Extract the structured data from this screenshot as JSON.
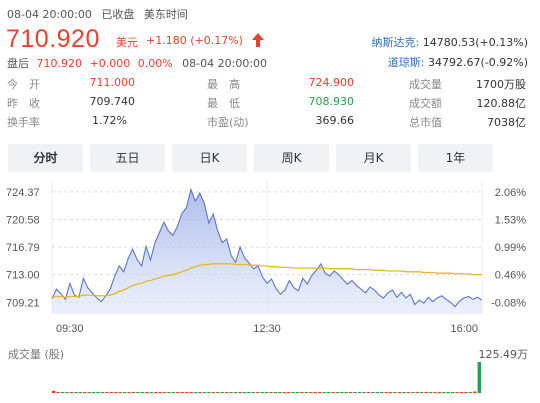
{
  "status": {
    "date_time": "08-04 20:00:00",
    "market_state": "已收盘",
    "timezone": "美东时间"
  },
  "quote": {
    "price": "710.920",
    "unit": "美元",
    "change": "+1.180 (+0.17%)",
    "colors": {
      "up": "#e8412f",
      "down": "#2a9d4e"
    }
  },
  "after_hours": {
    "label": "盘后",
    "price": "710.920",
    "change": "+0.000",
    "pct": "0.00%",
    "time": "08-04 20:00:00"
  },
  "indices": [
    {
      "name": "纳斯达克:",
      "value": "14780.53(+0.13%)"
    },
    {
      "name": "道琼斯:",
      "value": "34792.67(-0.92%)"
    }
  ],
  "stats": {
    "open": {
      "label": "今　开",
      "value": "711.000"
    },
    "high": {
      "label": "最　高",
      "value": "724.900"
    },
    "volume": {
      "label": "成交量",
      "value": "1700万股"
    },
    "prev_close": {
      "label": "昨　收",
      "value": "709.740"
    },
    "low": {
      "label": "最　低",
      "value": "708.930"
    },
    "turnover": {
      "label": "成交额",
      "value": "120.88亿"
    },
    "turnover_rate": {
      "label": "换手率",
      "value": "1.72%"
    },
    "pe": {
      "label": "市盈(动)",
      "value": "369.66"
    },
    "market_cap": {
      "label": "总市值",
      "value": "7038亿"
    }
  },
  "tabs": [
    "分时",
    "五日",
    "日K",
    "周K",
    "月K",
    "1年"
  ],
  "active_tab": "分时",
  "chart_data": {
    "type": "line",
    "x_ticks": [
      "09:30",
      "12:30",
      "16:00"
    ],
    "y_ticks": [
      "724.37",
      "720.58",
      "716.79",
      "713.00",
      "709.21"
    ],
    "y_right_ticks": [
      "2.06%",
      "1.53%",
      "0.99%",
      "0.46%",
      "-0.08%"
    ],
    "ylim": [
      707.6,
      726.0
    ],
    "prev_close": 709.74,
    "series": [
      {
        "name": "",
        "color": "#5b77c9",
        "fill": true,
        "values": [
          709.7,
          711.0,
          710.4,
          709.6,
          711.8,
          710.2,
          709.9,
          712.5,
          711.2,
          710.5,
          709.8,
          709.3,
          710.1,
          711.0,
          712.8,
          714.2,
          713.4,
          715.2,
          716.5,
          715.1,
          714.2,
          716.9,
          715.0,
          717.4,
          718.8,
          720.2,
          719.0,
          718.4,
          719.6,
          721.4,
          722.2,
          724.7,
          723.1,
          724.2,
          722.8,
          720.1,
          721.3,
          719.0,
          717.4,
          717.9,
          715.6,
          714.7,
          716.8,
          715.3,
          714.6,
          713.8,
          714.2,
          712.7,
          711.8,
          712.4,
          711.1,
          710.3,
          710.9,
          712.2,
          711.2,
          710.8,
          712.5,
          711.7,
          712.9,
          713.6,
          714.5,
          713.2,
          712.8,
          713.5,
          713.0,
          712.3,
          711.7,
          712.2,
          711.5,
          711.0,
          710.5,
          711.3,
          710.9,
          710.2,
          709.8,
          710.5,
          710.9,
          709.9,
          710.6,
          709.8,
          710.3,
          708.9,
          709.5,
          709.1,
          709.9,
          709.3,
          709.8,
          710.1,
          709.6,
          709.2,
          708.6,
          709.4,
          709.8,
          710.0,
          709.6,
          709.9,
          709.5
        ]
      },
      {
        "name": "",
        "color": "#e6b826",
        "fill": false,
        "values": [
          709.9,
          710.0,
          710.0,
          709.9,
          710.0,
          710.0,
          710.0,
          710.2,
          710.2,
          710.2,
          710.1,
          710.1,
          710.1,
          710.2,
          710.4,
          710.7,
          710.9,
          711.2,
          711.5,
          711.7,
          711.8,
          712.1,
          712.2,
          712.4,
          712.6,
          712.8,
          712.9,
          713.0,
          713.2,
          713.4,
          713.6,
          713.9,
          714.1,
          714.3,
          714.4,
          714.4,
          714.5,
          714.5,
          714.5,
          714.5,
          714.5,
          714.4,
          714.4,
          714.4,
          714.3,
          714.3,
          714.3,
          714.2,
          714.2,
          714.1,
          714.1,
          714.0,
          714.0,
          714.0,
          713.9,
          713.9,
          713.9,
          713.9,
          713.9,
          713.9,
          713.9,
          713.9,
          713.8,
          713.8,
          713.8,
          713.8,
          713.8,
          713.8,
          713.7,
          713.7,
          713.7,
          713.7,
          713.6,
          713.6,
          713.6,
          713.5,
          713.5,
          713.5,
          713.5,
          713.4,
          713.4,
          713.4,
          713.4,
          713.3,
          713.3,
          713.3,
          713.2,
          713.2,
          713.2,
          713.2,
          713.1,
          713.1,
          713.1,
          713.1,
          713.0,
          713.0,
          713.0
        ]
      }
    ],
    "volume": {
      "title": "成交量 (股)",
      "max_label": "125.49万",
      "max": 125.49,
      "colors": {
        "up": "#e8412f",
        "down": "#2a9d4e"
      },
      "values": [
        9,
        4,
        3,
        3,
        2,
        3,
        2,
        2,
        2,
        2,
        2,
        2,
        2,
        2,
        3,
        2,
        2,
        3,
        2,
        2,
        2,
        2,
        2,
        3,
        2,
        2,
        2,
        2,
        2,
        3,
        4,
        3,
        2,
        3,
        2,
        2,
        2,
        2,
        2,
        2,
        2,
        2,
        2,
        2,
        2,
        2,
        2,
        2,
        2,
        2,
        2,
        2,
        2,
        2,
        2,
        2,
        2,
        2,
        2,
        2,
        2,
        2,
        2,
        2,
        2,
        2,
        2,
        2,
        2,
        2,
        2,
        2,
        2,
        2,
        2,
        2,
        2,
        2,
        2,
        2,
        2,
        2,
        2,
        2,
        2,
        2,
        2,
        2,
        2,
        3,
        3,
        3,
        3,
        3,
        4,
        6,
        125.49
      ]
    }
  }
}
